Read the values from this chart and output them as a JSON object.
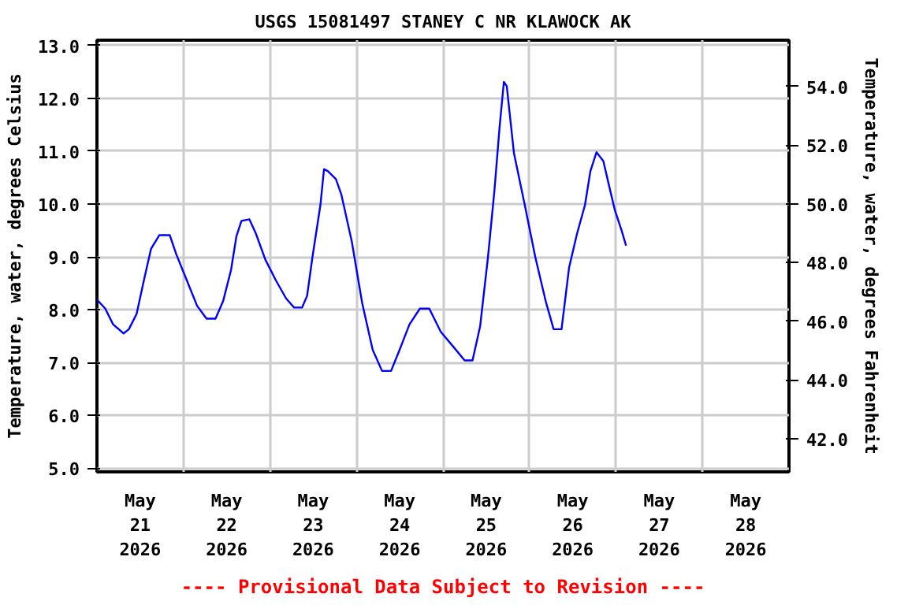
{
  "chart_data": {
    "type": "line",
    "title": "USGS 15081497 STANEY C NR KLAWOCK AK",
    "ylabel": "Temperature, water, degrees Celsius",
    "y2label": "Temperature, water, degrees Fahrenheit",
    "annotations": [
      "---- Provisional Data Subject to Revision ----"
    ],
    "series": [
      {
        "color": "#0000ff",
        "x": [
          "2026-05-21T00:00",
          "2026-05-21T02:18",
          "2026-05-21T04:30",
          "2026-05-21T07:24",
          "2026-05-21T08:52",
          "2026-05-21T11:00",
          "2026-05-21T13:12",
          "2026-05-21T15:00",
          "2026-05-21T17:18",
          "2026-05-21T20:12",
          "2026-05-21T22:00",
          "2026-05-22T00:54",
          "2026-05-22T03:48",
          "2026-05-22T06:24",
          "2026-05-22T08:54",
          "2026-05-22T11:00",
          "2026-05-22T13:12",
          "2026-05-22T14:42",
          "2026-05-22T16:06",
          "2026-05-22T18:18",
          "2026-05-22T20:06",
          "2026-05-22T22:42",
          "2026-05-23T01:36",
          "2026-05-23T04:30",
          "2026-05-23T06:42",
          "2026-05-23T08:54",
          "2026-05-23T10:18",
          "2026-05-23T11:48",
          "2026-05-23T14:00",
          "2026-05-23T15:00",
          "2026-05-23T16:06",
          "2026-05-23T18:18",
          "2026-05-23T19:48",
          "2026-05-23T22:42",
          "2026-05-24T01:36",
          "2026-05-24T04:30",
          "2026-05-24T07:06",
          "2026-05-24T09:36",
          "2026-05-24T11:48",
          "2026-05-24T14:42",
          "2026-05-24T17:36",
          "2026-05-24T20:12",
          "2026-05-24T23:24",
          "2026-05-25T03:06",
          "2026-05-25T06:00",
          "2026-05-25T08:12",
          "2026-05-25T10:18",
          "2026-05-25T12:30",
          "2026-05-25T14:18",
          "2026-05-25T15:42",
          "2026-05-25T16:54",
          "2026-05-25T17:42",
          "2026-05-25T19:42",
          "2026-05-25T22:42",
          "2026-05-26T01:36",
          "2026-05-26T04:30",
          "2026-05-26T06:42",
          "2026-05-26T08:54",
          "2026-05-26T11:00",
          "2026-05-26T13:12",
          "2026-05-26T15:24",
          "2026-05-26T16:54",
          "2026-05-26T18:36",
          "2026-05-26T20:30",
          "2026-05-26T22:00",
          "2026-05-26T23:42",
          "2026-05-27T01:36",
          "2026-05-27T02:48"
        ],
        "values": [
          8.19,
          8.02,
          7.72,
          7.55,
          7.63,
          7.92,
          8.61,
          9.15,
          9.41,
          9.41,
          9.05,
          8.56,
          8.07,
          7.83,
          7.83,
          8.16,
          8.75,
          9.39,
          9.68,
          9.71,
          9.44,
          8.95,
          8.56,
          8.21,
          8.04,
          8.04,
          8.26,
          9.0,
          9.98,
          10.66,
          10.62,
          10.47,
          10.18,
          9.29,
          8.12,
          7.24,
          6.84,
          6.84,
          7.21,
          7.72,
          8.02,
          8.02,
          7.58,
          7.28,
          7.04,
          7.04,
          7.68,
          9.0,
          10.27,
          11.45,
          12.31,
          12.23,
          10.96,
          9.98,
          9.0,
          8.16,
          7.63,
          7.63,
          8.8,
          9.44,
          9.98,
          10.62,
          10.98,
          10.81,
          10.37,
          9.88,
          9.49,
          9.21
        ]
      }
    ],
    "xlim": [
      "2026-05-21T00:00",
      "2026-05-29T00:00"
    ],
    "xticks": [
      {
        "value": "2026-05-21T12:00",
        "label": "May\n21\n2026"
      },
      {
        "value": "2026-05-22T12:00",
        "label": "May\n22\n2026"
      },
      {
        "value": "2026-05-23T12:00",
        "label": "May\n23\n2026"
      },
      {
        "value": "2026-05-24T12:00",
        "label": "May\n24\n2026"
      },
      {
        "value": "2026-05-25T12:00",
        "label": "May\n25\n2026"
      },
      {
        "value": "2026-05-26T12:00",
        "label": "May\n26\n2026"
      },
      {
        "value": "2026-05-27T12:00",
        "label": "May\n27\n2026"
      },
      {
        "value": "2026-05-28T12:00",
        "label": "May\n28\n2026"
      },
      {
        "value": "2026-05-22T00:00",
        "label": null
      },
      {
        "value": "2026-05-23T00:00",
        "label": null
      },
      {
        "value": "2026-05-24T00:00",
        "label": null
      },
      {
        "value": "2026-05-25T00:00",
        "label": null
      },
      {
        "value": "2026-05-26T00:00",
        "label": null
      },
      {
        "value": "2026-05-27T00:00",
        "label": null
      },
      {
        "value": "2026-05-28T00:00",
        "label": null
      }
    ],
    "ylim": [
      4.93,
      13.1
    ],
    "yticks": [
      {
        "value": 5,
        "label": "5.0"
      },
      {
        "value": 6,
        "label": "6.0"
      },
      {
        "value": 7,
        "label": "7.0"
      },
      {
        "value": 8,
        "label": "8.0"
      },
      {
        "value": 9,
        "label": "9.0"
      },
      {
        "value": 10,
        "label": "10.0"
      },
      {
        "value": 11,
        "label": "11.0"
      },
      {
        "value": 12,
        "label": "12.0"
      },
      {
        "value": 13,
        "label": "13.0"
      }
    ],
    "y2lim": [
      40.87,
      55.58
    ],
    "y2ticks": [
      {
        "value": 42,
        "label": "42.0"
      },
      {
        "value": 44,
        "label": "44.0"
      },
      {
        "value": 46,
        "label": "46.0"
      },
      {
        "value": 48,
        "label": "48.0"
      },
      {
        "value": 50,
        "label": "50.0"
      },
      {
        "value": 52,
        "label": "52.0"
      },
      {
        "value": 54,
        "label": "54.0"
      }
    ],
    "grid": true,
    "line_style": "solid",
    "marker": "none"
  }
}
